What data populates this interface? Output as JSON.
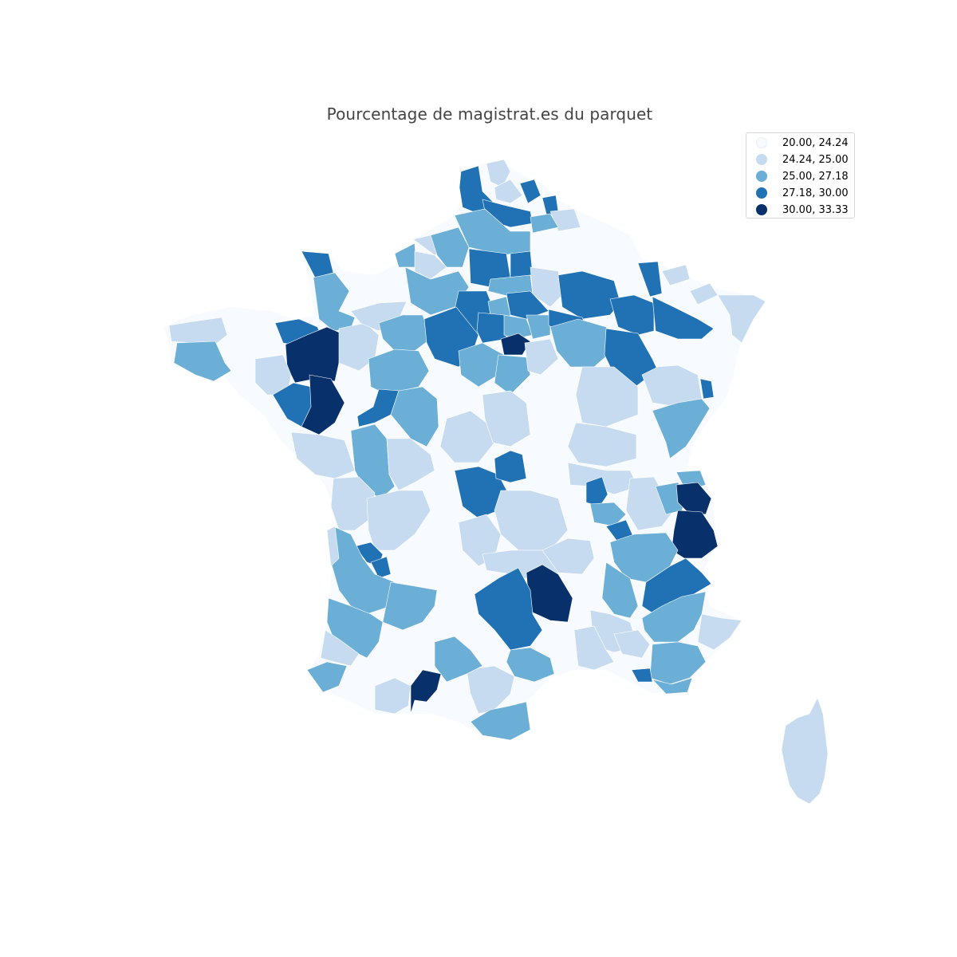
{
  "title": "Pourcentage de magistrat.es du parquet",
  "legend": {
    "items": [
      {
        "label": "20.00, 24.24",
        "color": "#f7fbff"
      },
      {
        "label": "24.24, 25.00",
        "color": "#c6dbef"
      },
      {
        "label": "25.00, 27.18",
        "color": "#6baed6"
      },
      {
        "label": "27.18, 30.00",
        "color": "#2171b5"
      },
      {
        "label": "30.00, 33.33",
        "color": "#08306b"
      }
    ]
  },
  "map": {
    "region": "France",
    "units": "départements"
  }
}
